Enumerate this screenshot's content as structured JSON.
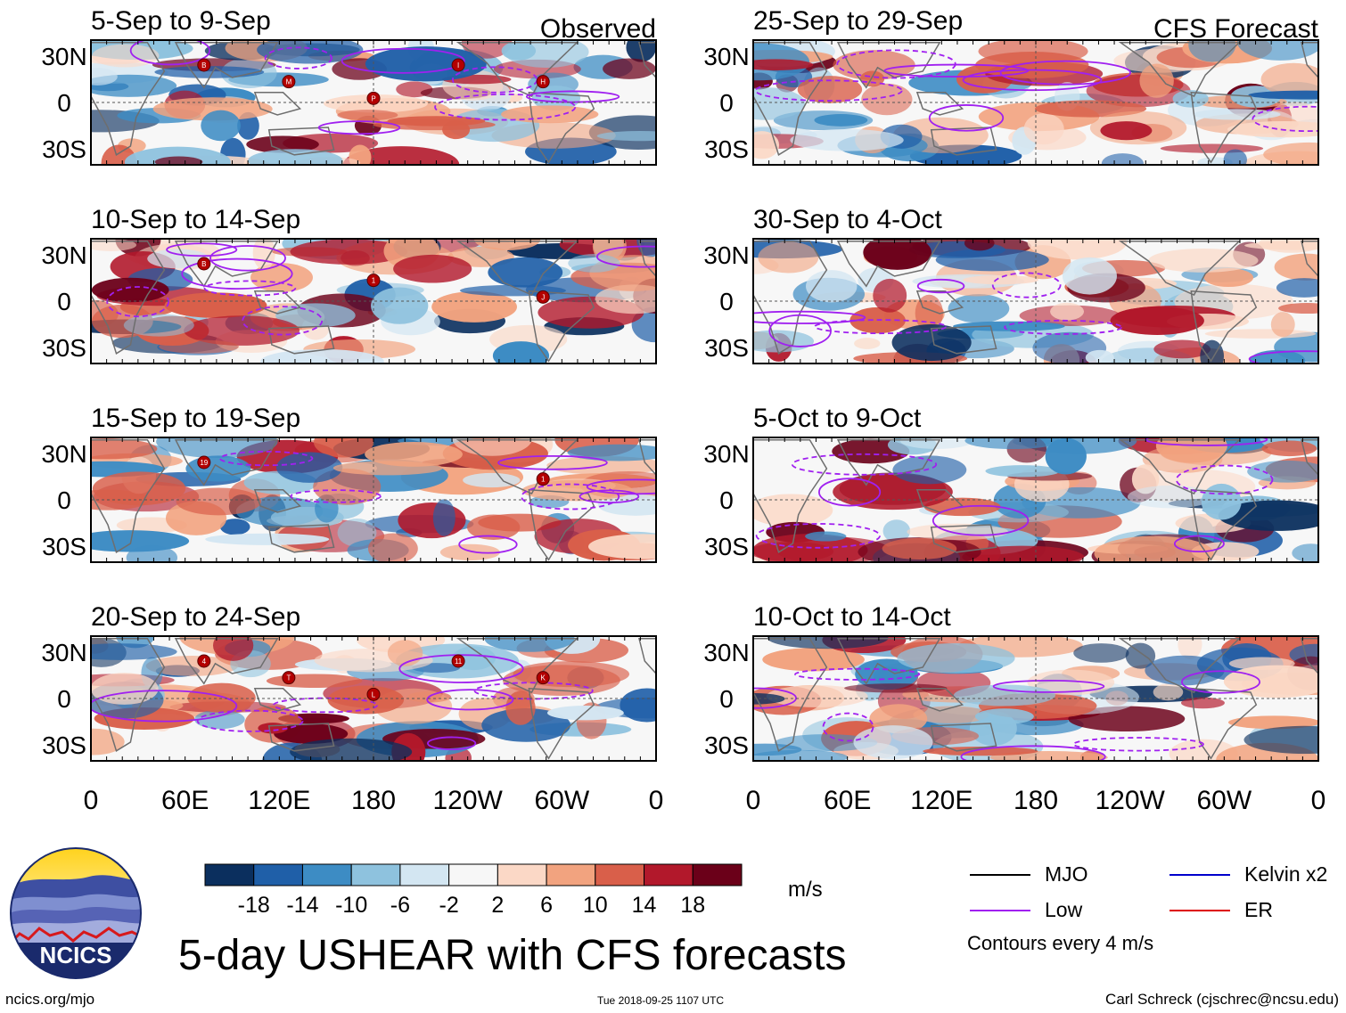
{
  "title": "5-day USHEAR with CFS forecasts",
  "site": "ncics.org/mjo",
  "timestamp": "Tue 2018-09-25 1107 UTC",
  "credit": "Carl Schreck (cjschrec@ncsu.edu)",
  "logo_text": "NCICS",
  "units": "m/s",
  "contour_note": "Contours every 4 m/s",
  "legend": [
    {
      "label": "MJO",
      "color": "#000000"
    },
    {
      "label": "Low",
      "color": "#a020f0"
    },
    {
      "label": "Kelvin x2",
      "color": "#0000cc"
    },
    {
      "label": "ER",
      "color": "#dd0000"
    }
  ],
  "colorbar": {
    "colors": [
      "#0b2f5e",
      "#1f5fa8",
      "#3d8cc4",
      "#8ec2de",
      "#d3e6f2",
      "#f7f7f7",
      "#fbd8c6",
      "#f2a37f",
      "#d95f4a",
      "#b2182b",
      "#6b0019"
    ],
    "labels": [
      "-18",
      "-14",
      "-10",
      "-6",
      "-2",
      "2",
      "6",
      "10",
      "14",
      "18"
    ]
  },
  "chart_data": {
    "type": "heatmap",
    "variable": "USHEAR",
    "units": "m/s",
    "x_ticks": [
      "0",
      "60E",
      "120E",
      "180",
      "120W",
      "60W",
      "0"
    ],
    "y_ticks": [
      "30N",
      "0",
      "30S"
    ],
    "columns": [
      {
        "label": "Observed",
        "panels": [
          {
            "title": "5-Sep to 9-Sep",
            "storms": [
              "B",
              "M",
              "P",
              "I",
              "H"
            ]
          },
          {
            "title": "10-Sep to 14-Sep",
            "storms": [
              "B",
              "1",
              "J"
            ]
          },
          {
            "title": "15-Sep to 19-Sep",
            "storms": [
              "19",
              "1"
            ]
          },
          {
            "title": "20-Sep to 24-Sep",
            "storms": [
              "4",
              "T",
              "L",
              "11",
              "K"
            ]
          }
        ]
      },
      {
        "label": "CFS Forecast",
        "panels": [
          {
            "title": "25-Sep to 29-Sep",
            "storms": []
          },
          {
            "title": "30-Sep to 4-Oct",
            "storms": []
          },
          {
            "title": "5-Oct to 9-Oct",
            "storms": []
          },
          {
            "title": "10-Oct to 14-Oct",
            "storms": []
          }
        ]
      }
    ]
  }
}
